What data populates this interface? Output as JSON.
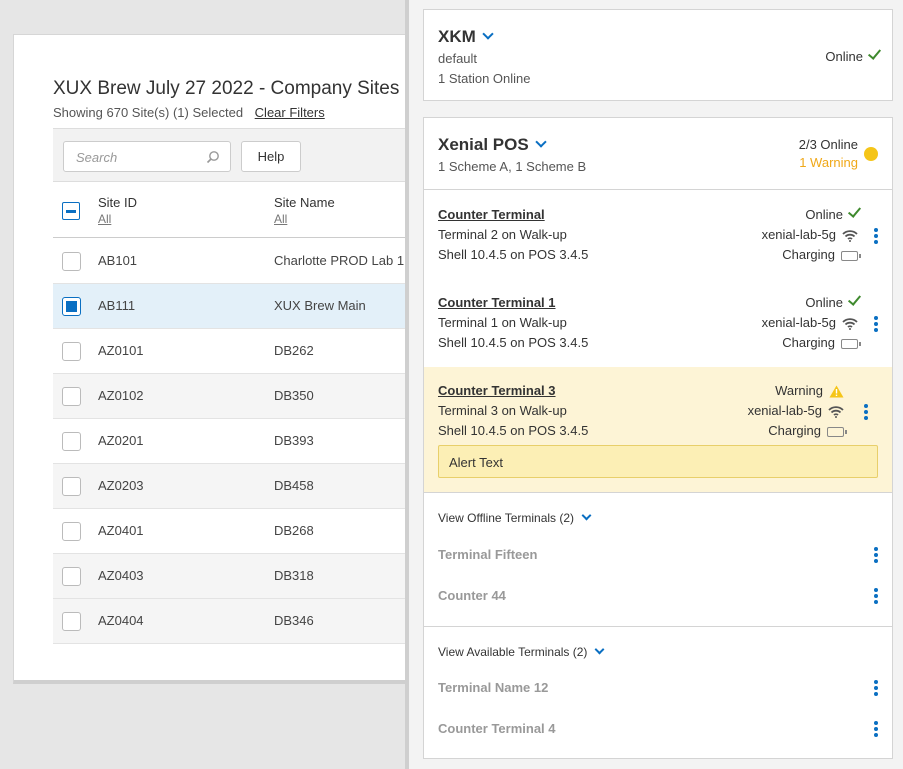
{
  "sites": {
    "title": "XUX Brew July 27 2022 - Company Sites",
    "showing": "Showing 670 Site(s) (1) Selected",
    "clear_filters": "Clear Filters",
    "search_placeholder": "Search",
    "help_label": "Help",
    "col_site_id": "Site ID",
    "col_site_name": "Site Name",
    "filter_all": "All",
    "rows": [
      {
        "id": "AB101",
        "name": "Charlotte PROD Lab 1"
      },
      {
        "id": "AB111",
        "name": "XUX Brew Main"
      },
      {
        "id": "AZ0101",
        "name": "DB262"
      },
      {
        "id": "AZ0102",
        "name": "DB350"
      },
      {
        "id": "AZ0201",
        "name": "DB393"
      },
      {
        "id": "AZ0203",
        "name": "DB458"
      },
      {
        "id": "AZ0401",
        "name": "DB268"
      },
      {
        "id": "AZ0403",
        "name": "DB318"
      },
      {
        "id": "AZ0404",
        "name": "DB346"
      }
    ]
  },
  "xkm": {
    "title": "XKM",
    "subtitle": "default",
    "stations": "1 Station Online",
    "status": "Online"
  },
  "pos": {
    "title": "Xenial POS",
    "schemes": "1 Scheme A, 1 Scheme B",
    "online_count": "2/3 Online",
    "warning_count": "1 Warning",
    "colors": {
      "accent": "#0a6fc2",
      "ok": "#3f8a2e",
      "warn": "#f5c518"
    },
    "terminals": [
      {
        "name": "Counter Terminal",
        "location": "Terminal 2 on Walk-up",
        "version": "Shell 10.4.5 on POS 3.4.5",
        "status": "Online",
        "network": "xenial-lab-5g",
        "power": "Charging"
      },
      {
        "name": "Counter Terminal 1",
        "location": "Terminal 1 on Walk-up",
        "version": "Shell 10.4.5 on POS 3.4.5",
        "status": "Online",
        "network": "xenial-lab-5g",
        "power": "Charging"
      },
      {
        "name": "Counter Terminal 3",
        "location": "Terminal 3 on Walk-up",
        "version": "Shell 10.4.5 on POS 3.4.5",
        "status": "Warning",
        "network": "xenial-lab-5g",
        "power": "Charging",
        "alert": "Alert Text"
      }
    ],
    "offline_title": "View Offline Terminals (2)",
    "offline": [
      "Terminal Fifteen",
      "Counter  44"
    ],
    "available_title": "View Available Terminals (2)",
    "available": [
      "Terminal Name 12",
      "Counter Terminal 4"
    ]
  }
}
